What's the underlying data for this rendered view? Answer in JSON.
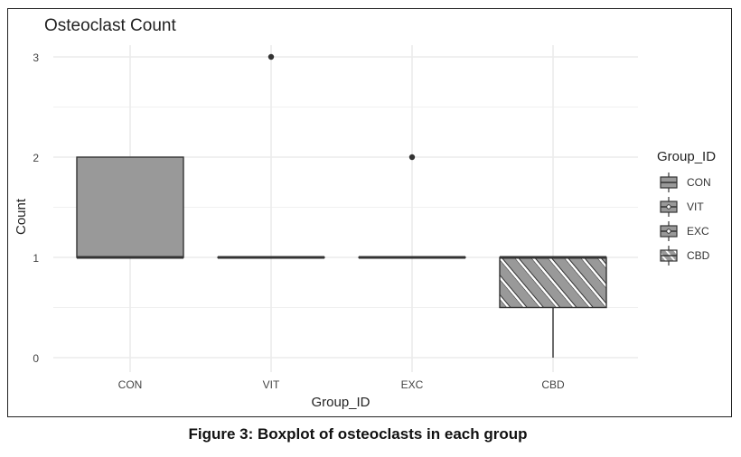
{
  "chart_data": {
    "type": "boxplot",
    "title": "Osteoclast Count",
    "xlabel": "Group_ID",
    "ylabel": "Count",
    "categories": [
      "CON",
      "VIT",
      "EXC",
      "CBD"
    ],
    "yticks": [
      0,
      1,
      2,
      3
    ],
    "ylim": [
      0,
      3
    ],
    "grid": true,
    "legend": {
      "title": "Group_ID",
      "position": "right",
      "entries": [
        "CON",
        "VIT",
        "EXC",
        "CBD"
      ]
    },
    "boxes": [
      {
        "group": "CON",
        "whisker_low": 1,
        "q1": 1,
        "median": 1,
        "q3": 2,
        "whisker_high": 2,
        "outliers": [],
        "pattern": "none"
      },
      {
        "group": "VIT",
        "whisker_low": 1,
        "q1": 1,
        "median": 1,
        "q3": 1,
        "whisker_high": 1,
        "outliers": [
          3
        ],
        "pattern": "none"
      },
      {
        "group": "EXC",
        "whisker_low": 1,
        "q1": 1,
        "median": 1,
        "q3": 1,
        "whisker_high": 1,
        "outliers": [
          2
        ],
        "pattern": "none"
      },
      {
        "group": "CBD",
        "whisker_low": 0,
        "q1": 0.5,
        "median": 1,
        "q3": 1,
        "whisker_high": 1,
        "outliers": [],
        "pattern": "stripe"
      }
    ],
    "colors": {
      "box_fill": "#999999",
      "box_line": "#333333",
      "grid": "#ebebeb",
      "stripe": "#ffffff"
    }
  },
  "caption": "Figure 3: Boxplot of osteoclasts in each group"
}
